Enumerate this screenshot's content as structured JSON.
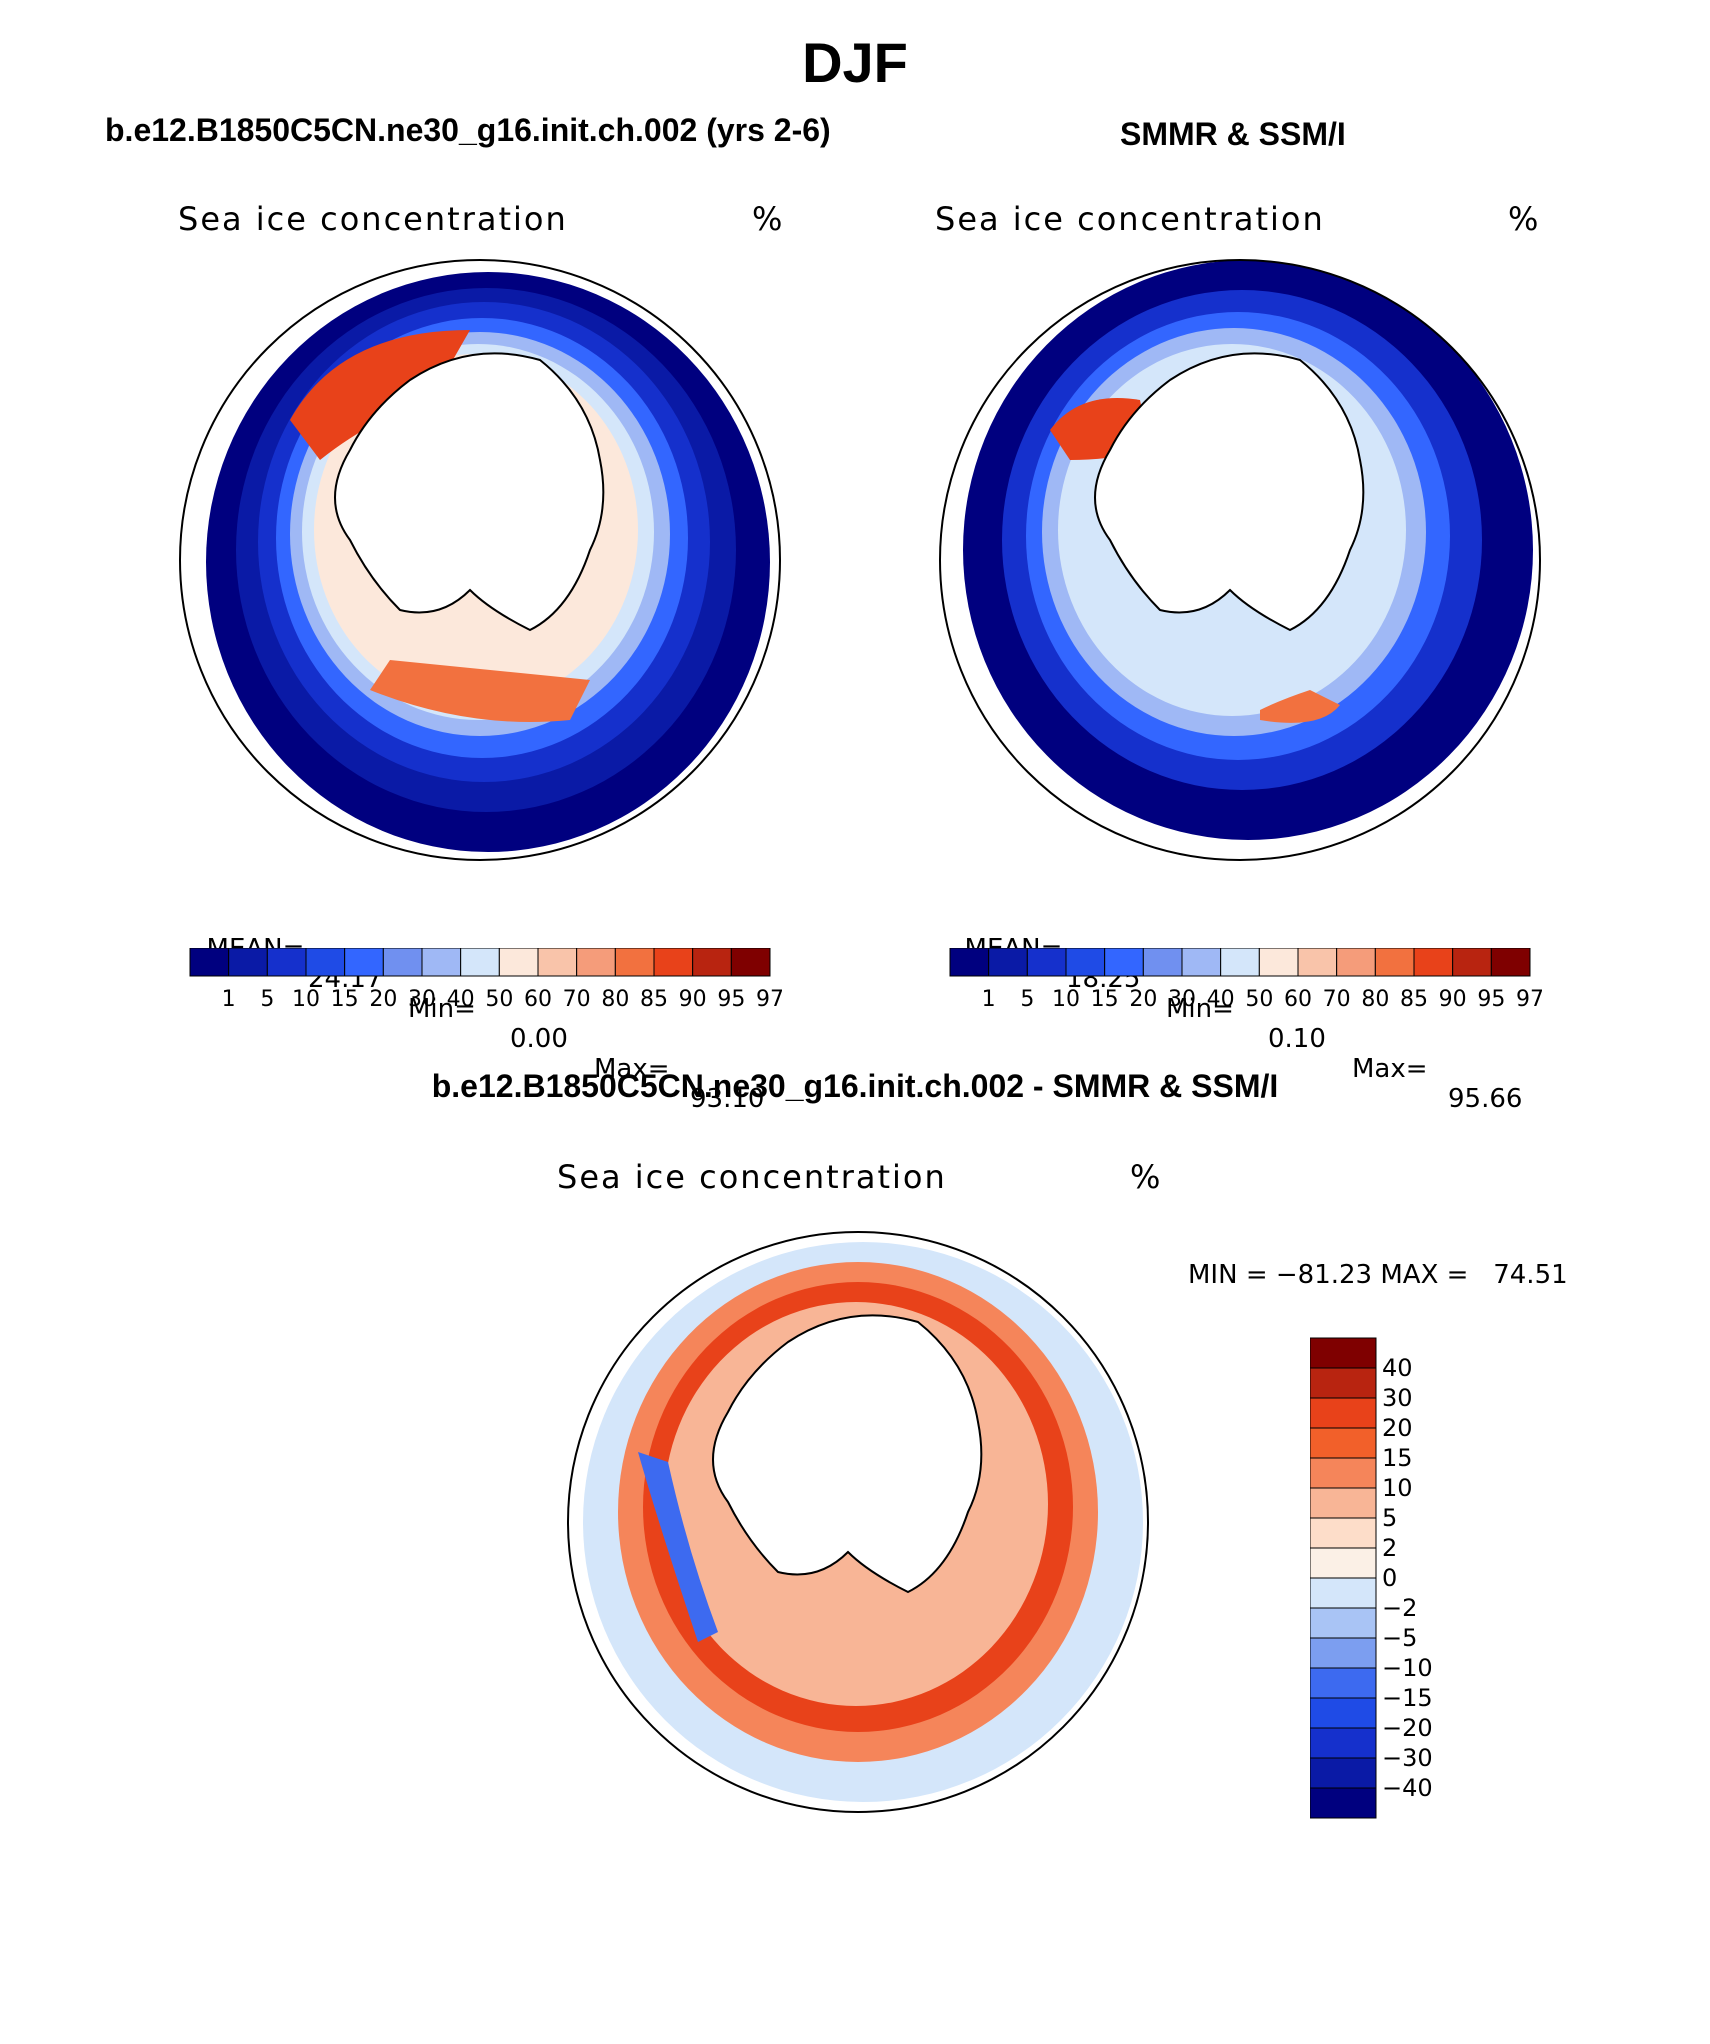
{
  "season": "DJF",
  "panels": {
    "model": {
      "case_title": "b.e12.B1850C5CN.ne30_g16.init.ch.002 (yrs 2-6)",
      "field": "Sea ice concentration",
      "units": "%",
      "mean_label": "MEAN=",
      "mean": "24.17",
      "min_label": "Min=",
      "min": "0.00",
      "max_label": "Max=",
      "max": "93.10"
    },
    "obs": {
      "case_title": "SMMR & SSM/I",
      "field": "Sea ice concentration",
      "units": "%",
      "mean_label": "MEAN=",
      "mean": "18.25",
      "min_label": "Min=",
      "min": "0.10",
      "max_label": "Max=",
      "max": "95.66"
    },
    "diff": {
      "case_title": "b.e12.B1850C5CN.ne30_g16.init.ch.002 - SMMR & SSM/I",
      "field": "Sea ice concentration",
      "units": "%",
      "minmax_text": "MIN = −81.23 MAX =   74.51"
    }
  },
  "colorbar_conc": {
    "levels": [
      "1",
      "5",
      "10",
      "15",
      "20",
      "30",
      "40",
      "50",
      "60",
      "70",
      "80",
      "85",
      "90",
      "95",
      "97"
    ],
    "colors": [
      "#00007f",
      "#0a1aa6",
      "#1530cc",
      "#1f4be6",
      "#3366ff",
      "#7090f0",
      "#9fb8f5",
      "#d4e6fa",
      "#fce8db",
      "#f9c4aa",
      "#f59c7a",
      "#f2713f",
      "#e8421a",
      "#b82410",
      "#7f0000"
    ]
  },
  "colorbar_diff": {
    "levels": [
      "40",
      "30",
      "20",
      "15",
      "10",
      "5",
      "2",
      "0",
      "−2",
      "−5",
      "−10",
      "−15",
      "−20",
      "−30",
      "−40"
    ],
    "colors": [
      "#7f0000",
      "#b82410",
      "#e8421a",
      "#f2602a",
      "#f5855a",
      "#f8b596",
      "#fdddc9",
      "#fbf0e6",
      "#d4e6fa",
      "#a9c4f5",
      "#7c9ef0",
      "#3d6af0",
      "#1f4be6",
      "#1530cc",
      "#0a1aa6",
      "#00007f"
    ]
  }
}
